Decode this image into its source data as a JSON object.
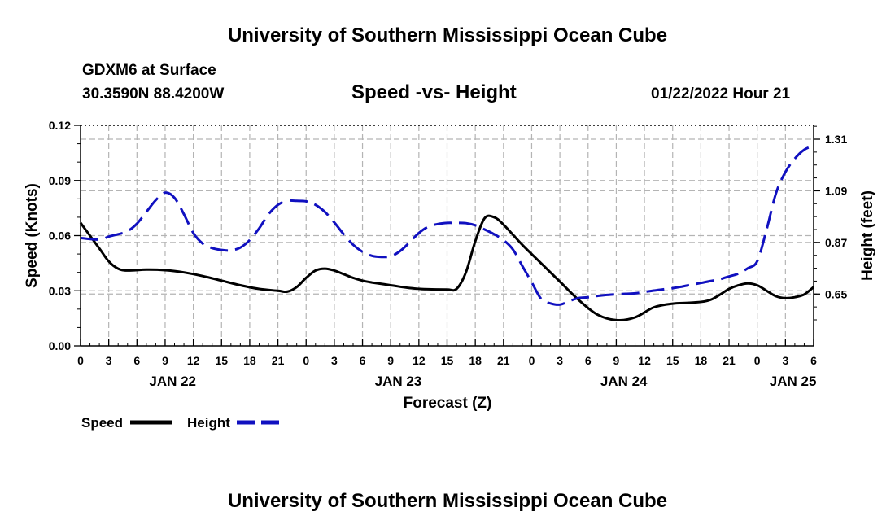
{
  "header": {
    "title": "University of Southern Mississippi Ocean Cube",
    "station": "GDXM6 at Surface",
    "coords": "30.3590N  88.4200W",
    "date": "01/22/2022 Hour 21"
  },
  "footer": {
    "title": "University of Southern Mississippi Ocean Cube"
  },
  "colors": {
    "speed": "#000000",
    "height": "#1010c0",
    "grid": "#b4b4b4"
  },
  "chart_data": {
    "type": "line",
    "title": "Speed -vs- Height",
    "xlabel": "Forecast (Z)",
    "ylabel": "Speed (Knots)",
    "ylabel_right": "Height (feet)",
    "xlim": [
      0,
      78
    ],
    "ylim": [
      0,
      0.12
    ],
    "ylim_right": [
      0.429,
      1.369
    ],
    "x_ticks": [
      0,
      3,
      6,
      9,
      12,
      15,
      18,
      21,
      24,
      27,
      30,
      33,
      36,
      39,
      42,
      45,
      48,
      51,
      54,
      57,
      60,
      63,
      66,
      69,
      72,
      75,
      78
    ],
    "x_tick_labels": [
      "0",
      "3",
      "6",
      "9",
      "12",
      "15",
      "18",
      "21",
      "0",
      "3",
      "6",
      "9",
      "12",
      "15",
      "18",
      "21",
      "0",
      "3",
      "6",
      "9",
      "12",
      "15",
      "18",
      "21",
      "0",
      "3",
      "6"
    ],
    "date_labels": [
      {
        "x": 9.8,
        "label": "JAN 22"
      },
      {
        "x": 33.8,
        "label": "JAN 23"
      },
      {
        "x": 57.8,
        "label": "JAN 24"
      },
      {
        "x": 75.8,
        "label": "JAN 25"
      }
    ],
    "y_ticks": [
      0.0,
      0.03,
      0.06,
      0.09,
      0.12
    ],
    "y_tick_labels": [
      "0.00",
      "0.03",
      "0.06",
      "0.09",
      "0.12"
    ],
    "y_ticks_right": [
      0.65,
      0.87,
      1.09,
      1.31
    ],
    "y_tick_labels_right": [
      "0.65",
      "0.87",
      "1.09",
      "1.31"
    ],
    "grid": true,
    "series": [
      {
        "name": "Speed",
        "axis": "left",
        "style": "solid",
        "x": [
          0,
          2,
          3,
          4,
          5,
          7,
          9,
          11,
          13,
          15,
          17,
          19,
          21,
          22,
          23,
          24,
          25,
          26,
          27,
          28,
          29,
          30,
          31,
          33,
          35,
          37,
          39,
          40,
          41,
          42,
          43,
          44,
          45,
          47,
          49,
          51,
          53,
          55,
          57,
          59,
          61,
          63,
          65,
          67,
          69,
          70,
          71,
          72,
          73,
          74,
          75,
          76,
          77,
          78
        ],
        "values": [
          0.067,
          0.053,
          0.046,
          0.042,
          0.041,
          0.0415,
          0.0412,
          0.04,
          0.038,
          0.0355,
          0.033,
          0.031,
          0.03,
          0.0295,
          0.032,
          0.037,
          0.041,
          0.042,
          0.041,
          0.039,
          0.037,
          0.0355,
          0.0345,
          0.033,
          0.0315,
          0.0308,
          0.0307,
          0.031,
          0.04,
          0.057,
          0.0695,
          0.07,
          0.066,
          0.055,
          0.045,
          0.035,
          0.025,
          0.017,
          0.014,
          0.0155,
          0.021,
          0.023,
          0.0235,
          0.025,
          0.031,
          0.033,
          0.034,
          0.033,
          0.03,
          0.027,
          0.026,
          0.0265,
          0.028,
          0.032
        ]
      },
      {
        "name": "Height",
        "axis": "right",
        "style": "dashed",
        "x": [
          0,
          2,
          3,
          4,
          5,
          6,
          7,
          8,
          9,
          10,
          11,
          12,
          13,
          14,
          15,
          16,
          17,
          18,
          19,
          20,
          21,
          22,
          23,
          24,
          25,
          26,
          27,
          28,
          29,
          30,
          31,
          32,
          33,
          34,
          35,
          36,
          37,
          38,
          39,
          40,
          41,
          42,
          43,
          44,
          45,
          46,
          47,
          48,
          49,
          50,
          51,
          52,
          53,
          54,
          55,
          56,
          57,
          58,
          59,
          60,
          61,
          62,
          63,
          64,
          65,
          66,
          67,
          68,
          69,
          70,
          71,
          72,
          73,
          74,
          75,
          76,
          77,
          78
        ],
        "values": [
          0.889,
          0.882,
          0.895,
          0.905,
          0.918,
          0.95,
          1.0,
          1.05,
          1.082,
          1.06,
          0.99,
          0.91,
          0.865,
          0.846,
          0.838,
          0.836,
          0.848,
          0.88,
          0.93,
          0.99,
          1.03,
          1.047,
          1.047,
          1.045,
          1.03,
          1.0,
          0.955,
          0.905,
          0.86,
          0.83,
          0.813,
          0.808,
          0.811,
          0.833,
          0.87,
          0.91,
          0.937,
          0.948,
          0.953,
          0.953,
          0.952,
          0.943,
          0.925,
          0.905,
          0.88,
          0.84,
          0.77,
          0.7,
          0.63,
          0.61,
          0.605,
          0.62,
          0.633,
          0.636,
          0.642,
          0.646,
          0.649,
          0.651,
          0.653,
          0.659,
          0.665,
          0.67,
          0.675,
          0.682,
          0.69,
          0.697,
          0.705,
          0.713,
          0.725,
          0.737,
          0.76,
          0.79,
          0.925,
          1.08,
          1.17,
          1.227,
          1.265,
          1.282
        ]
      }
    ],
    "legend": [
      {
        "label": "Speed",
        "series": "Speed"
      },
      {
        "label": "Height",
        "series": "Height"
      }
    ],
    "legend_position": "bottom-left"
  }
}
